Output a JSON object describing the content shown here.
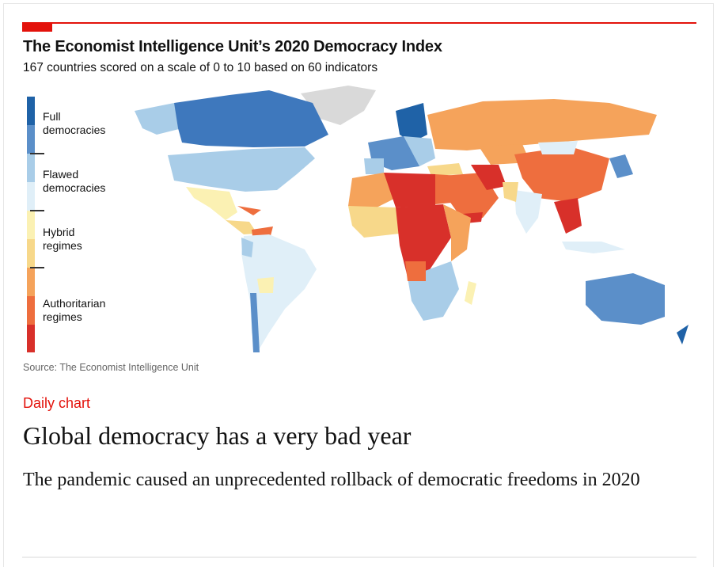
{
  "chart": {
    "title": "The Economist Intelligence Unit’s 2020 Democracy Index",
    "subtitle": "167 countries scored on a scale of 0 to 10 based on 60 indicators",
    "source": "Source: The Economist Intelligence Unit",
    "legend": [
      {
        "label": "Full\ndemocracies"
      },
      {
        "label": "Flawed\ndemocracies"
      },
      {
        "label": "Hybrid\nregimes"
      },
      {
        "label": "Authoritarian\nregimes"
      }
    ],
    "colors": {
      "full_dark": "#1f62a7",
      "full_light": "#5b8fc9",
      "flawed_dark": "#a9cde8",
      "flawed_light": "#e0eff8",
      "hybrid_light": "#fbf1b3",
      "hybrid_dark": "#f7d88a",
      "auth_light": "#f5a35b",
      "auth_mid": "#ee6e3e",
      "auth_dark": "#d8302a",
      "no_data": "#d9d9d9",
      "accent_red": "#e3120b"
    }
  },
  "article": {
    "kicker": "Daily chart",
    "headline": "Global democracy has a very bad year",
    "standfirst": "The pandemic caused an unprecedented rollback of democratic freedoms in 2020"
  }
}
